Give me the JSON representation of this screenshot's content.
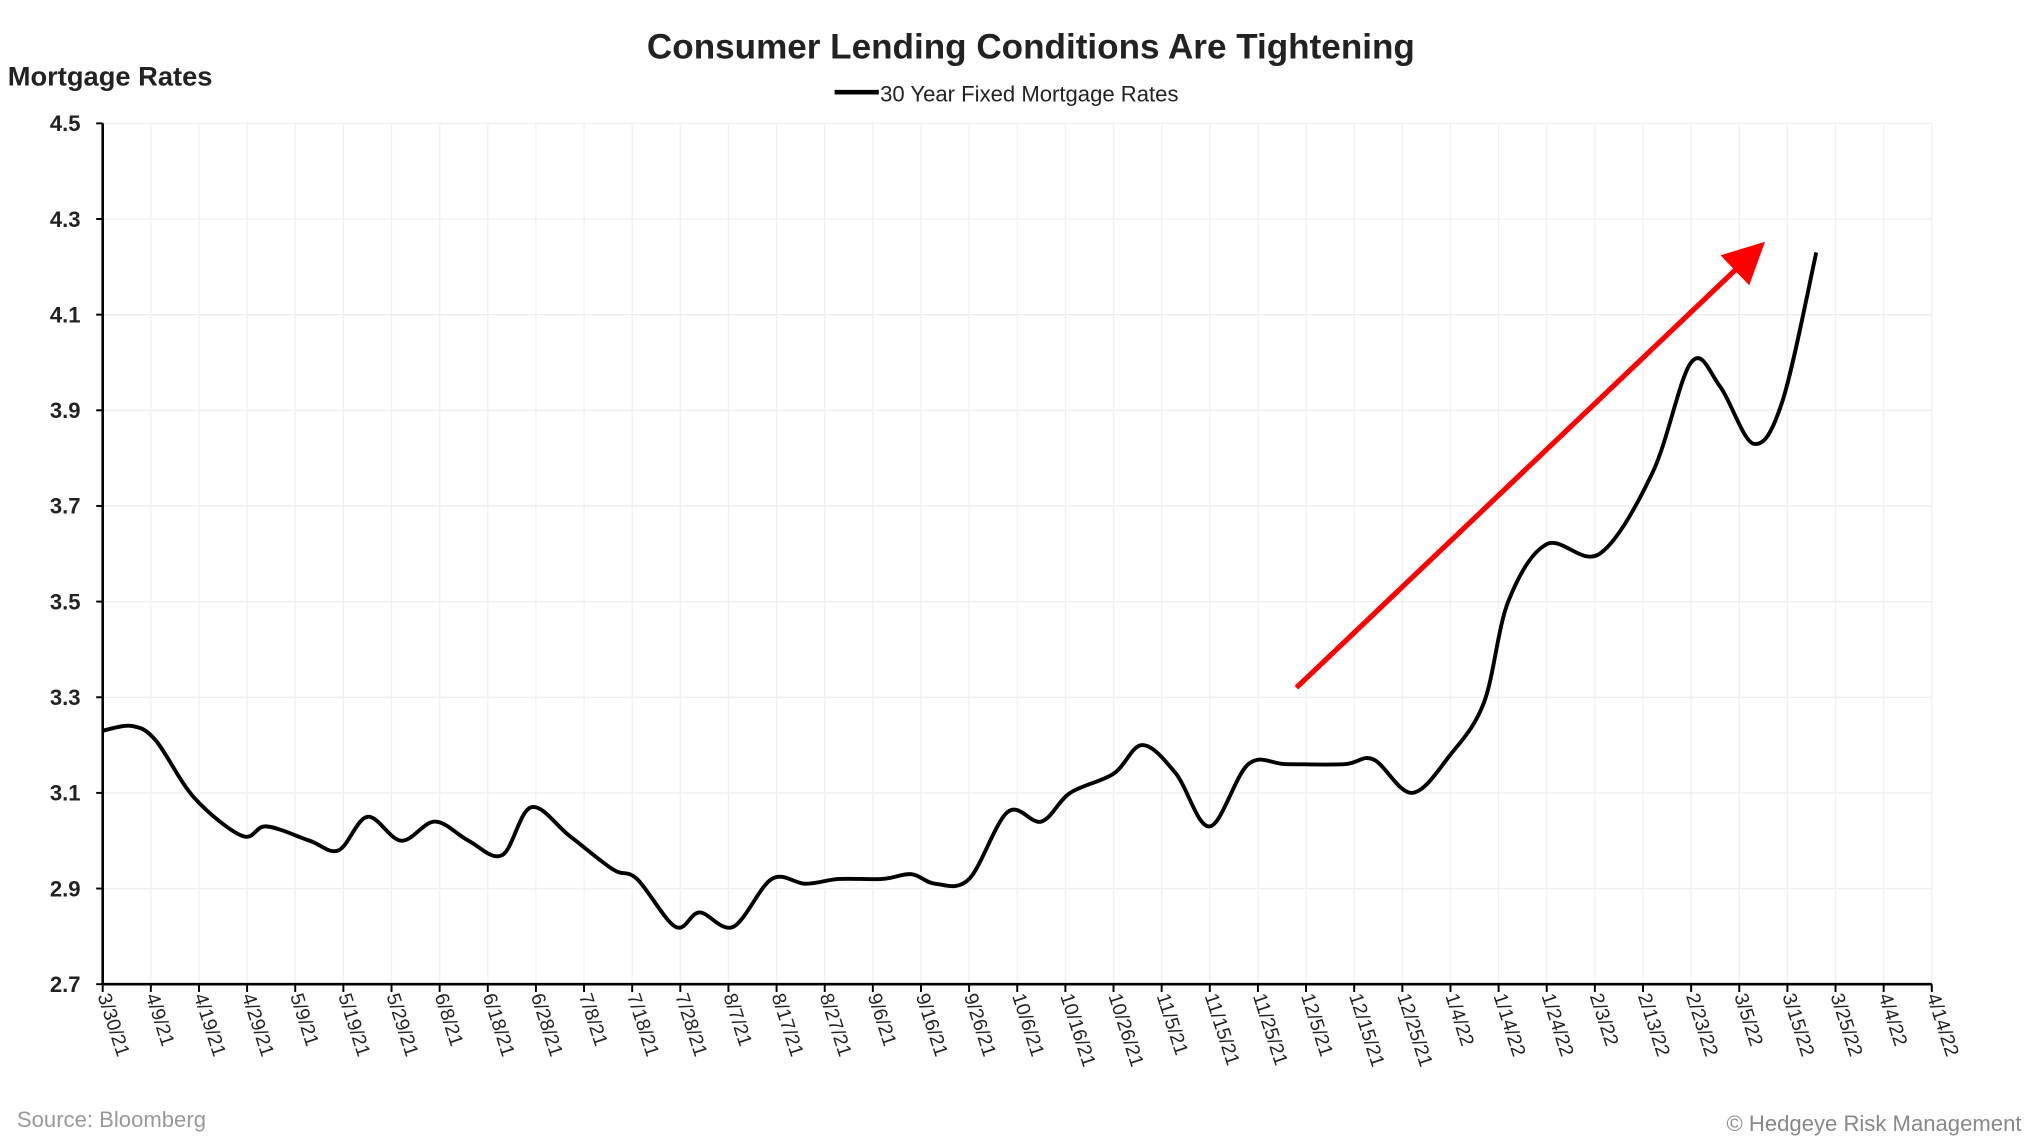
{
  "chart_data": {
    "type": "line",
    "title": "Consumer Lending Conditions Are Tightening",
    "ylabel": "Mortgage Rates",
    "xlabel": "",
    "ylim": [
      2.7,
      4.5
    ],
    "yticks": [
      "4.5",
      "4.3",
      "4.1",
      "3.9",
      "3.7",
      "3.5",
      "3.3",
      "3.1",
      "2.9",
      "2.7"
    ],
    "xlim": [
      "2021-03-30",
      "2022-04-14"
    ],
    "xtick_labels": [
      "3/30/21",
      "4/9/21",
      "4/19/21",
      "4/29/21",
      "5/9/21",
      "5/19/21",
      "5/29/21",
      "6/8/21",
      "6/18/21",
      "6/28/21",
      "7/8/21",
      "7/18/21",
      "7/28/21",
      "8/7/21",
      "8/17/21",
      "8/27/21",
      "9/6/21",
      "9/16/21",
      "9/26/21",
      "10/6/21",
      "10/16/21",
      "10/26/21",
      "11/5/21",
      "11/15/21",
      "11/25/21",
      "12/5/21",
      "12/15/21",
      "12/25/21",
      "1/4/22",
      "1/14/22",
      "1/24/22",
      "2/3/22",
      "2/13/22",
      "2/23/22",
      "3/5/22",
      "3/15/22",
      "3/25/22",
      "4/4/22",
      "4/14/22"
    ],
    "grid": true,
    "legend_position": "top-center",
    "series": [
      {
        "name": "30 Year Fixed Mortgage Rates",
        "color": "#000000",
        "x": [
          "2021-03-30",
          "2021-04-05",
          "2021-04-10",
          "2021-04-18",
          "2021-04-28",
          "2021-05-03",
          "2021-05-12",
          "2021-05-18",
          "2021-05-24",
          "2021-05-31",
          "2021-06-07",
          "2021-06-14",
          "2021-06-21",
          "2021-06-27",
          "2021-07-05",
          "2021-07-14",
          "2021-07-19",
          "2021-07-27",
          "2021-08-01",
          "2021-08-08",
          "2021-08-16",
          "2021-08-23",
          "2021-08-30",
          "2021-09-08",
          "2021-09-14",
          "2021-09-19",
          "2021-09-26",
          "2021-10-04",
          "2021-10-11",
          "2021-10-17",
          "2021-10-26",
          "2021-11-01",
          "2021-11-08",
          "2021-11-15",
          "2021-11-23",
          "2021-12-01",
          "2021-12-13",
          "2021-12-19",
          "2021-12-27",
          "2022-01-04",
          "2022-01-11",
          "2022-01-16",
          "2022-01-24",
          "2022-02-04",
          "2022-02-15",
          "2022-02-23",
          "2022-03-01",
          "2022-03-08",
          "2022-03-14",
          "2022-03-21"
        ],
        "values": [
          3.23,
          3.24,
          3.21,
          3.09,
          3.01,
          3.03,
          3.0,
          2.98,
          3.05,
          3.0,
          3.04,
          3.0,
          2.97,
          3.07,
          3.01,
          2.94,
          2.92,
          2.82,
          2.85,
          2.82,
          2.92,
          2.91,
          2.92,
          2.92,
          2.93,
          2.91,
          2.92,
          3.06,
          3.04,
          3.1,
          3.14,
          3.2,
          3.14,
          3.03,
          3.16,
          3.16,
          3.16,
          3.17,
          3.1,
          3.18,
          3.29,
          3.5,
          3.62,
          3.6,
          3.77,
          4.0,
          3.95,
          3.83,
          3.92,
          4.23
        ]
      }
    ],
    "annotations": [
      {
        "type": "arrow",
        "color": "#ff0000",
        "from": [
          "2021-12-03",
          3.32
        ],
        "to": [
          "2022-03-08",
          4.23
        ]
      }
    ]
  },
  "footer": {
    "source": "Source: Bloomberg",
    "copyright": "© Hedgeye Risk Management"
  }
}
